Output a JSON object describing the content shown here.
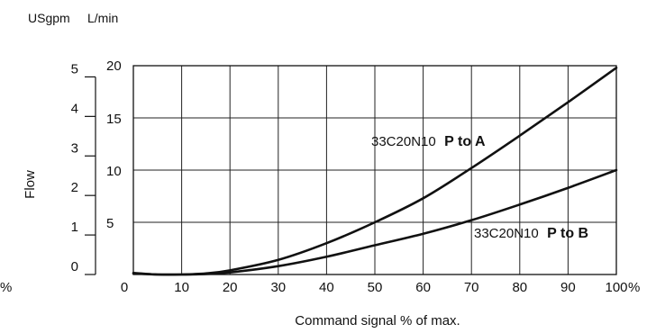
{
  "chart_data": {
    "type": "line",
    "title": "",
    "xlabel": "Command signal % of max.",
    "ylabel": "Flow",
    "x_unit": "%",
    "y_units": [
      "USgpm",
      "L/min"
    ],
    "y_left_percent_label": "%",
    "xlim": [
      0,
      100
    ],
    "ylim": [
      0,
      20
    ],
    "x_ticks": [
      "0",
      "10",
      "20",
      "30",
      "40",
      "50",
      "60",
      "70",
      "80",
      "90",
      "100"
    ],
    "y_ticks_lpm": [
      "5",
      "10",
      "15",
      "20"
    ],
    "y_zero_lpm": "0",
    "y_ticks_usgpm": [
      "0",
      "1",
      "2",
      "3",
      "4",
      "5"
    ],
    "y_ticks_usgpm_values_lpm": [
      0,
      3.785,
      7.571,
      11.356,
      15.142,
      18.927
    ],
    "grid": true,
    "series": [
      {
        "name_code": "33C20N10",
        "name_suffix": "P to A",
        "x": [
          0,
          5,
          10,
          15,
          20,
          30,
          40,
          50,
          60,
          70,
          80,
          90,
          100
        ],
        "y": [
          0.15,
          0.0,
          0.0,
          0.1,
          0.4,
          1.4,
          3.0,
          5.0,
          7.3,
          10.2,
          13.3,
          16.5,
          19.8
        ]
      },
      {
        "name_code": "33C20N10",
        "name_suffix": "P to B",
        "x": [
          0,
          5,
          10,
          15,
          20,
          30,
          40,
          50,
          60,
          70,
          80,
          90,
          100
        ],
        "y": [
          0.1,
          0.0,
          0.0,
          0.05,
          0.2,
          0.8,
          1.7,
          2.8,
          3.9,
          5.2,
          6.7,
          8.3,
          10.0
        ]
      }
    ]
  }
}
